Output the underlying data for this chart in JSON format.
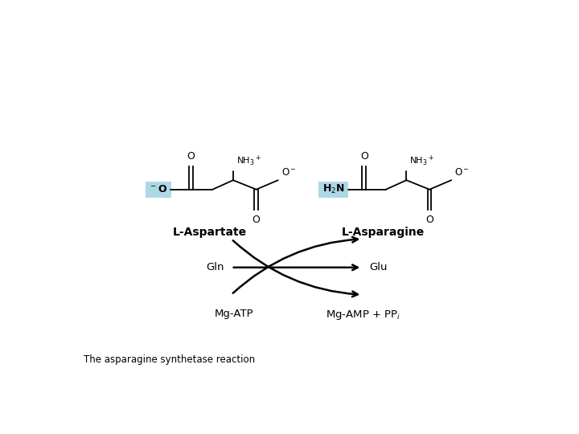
{
  "background_color": "#ffffff",
  "highlight_color": "#add8e6",
  "text_color": "#000000",
  "figsize": [
    7.2,
    5.4
  ],
  "dpi": 100,
  "caption": "The asparagine synthetase reaction",
  "labels": {
    "L_Aspartate": "L-Aspartate",
    "L_Asparagine": "L-Asparagine",
    "Gln": "Gln",
    "Glu": "Glu",
    "MgATP": "Mg-ATP",
    "MgAMP": "Mg-AMP + PP"
  }
}
